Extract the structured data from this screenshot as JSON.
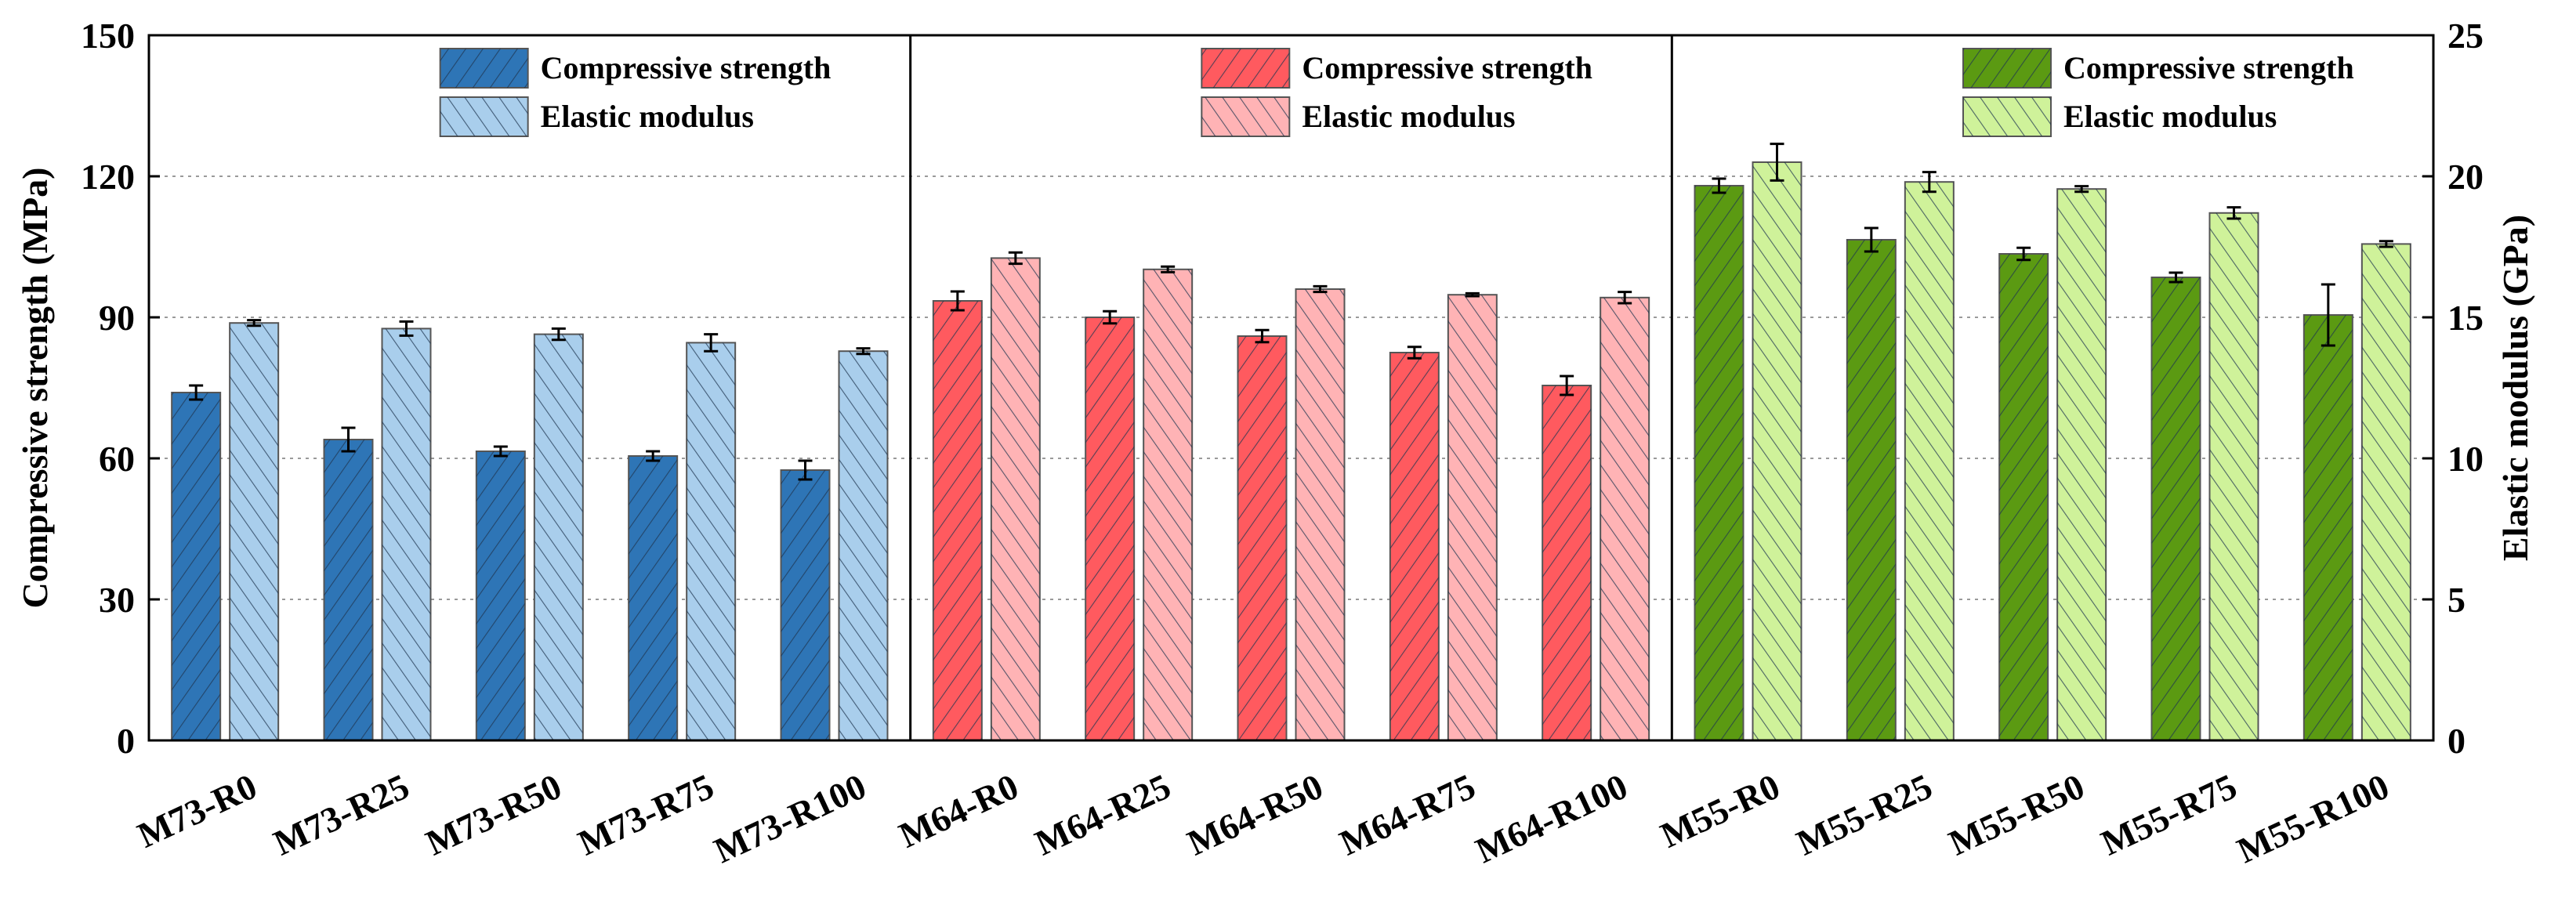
{
  "chart_data": {
    "type": "bar",
    "title": "",
    "ylabel_left": "Compressive strength (MPa)",
    "ylabel_right": "Elastic modulus (GPa)",
    "ylim_left": [
      0,
      150
    ],
    "ylim_right": [
      0,
      25
    ],
    "yticks_left": [
      "0",
      "30",
      "60",
      "90",
      "120",
      "150"
    ],
    "yticks_right": [
      "0",
      "5",
      "10",
      "15",
      "20",
      "25"
    ],
    "grid": true,
    "legend_position": "top-right of each panel",
    "legend_labels": {
      "compressive": "Compressive strength",
      "elastic": "Elastic modulus"
    },
    "panels": [
      {
        "group": "M73",
        "colors": {
          "compressive": "#2E75B6",
          "elastic": "#A9CEEC"
        },
        "categories": [
          "M73-R0",
          "M73-R25",
          "M73-R50",
          "M73-R75",
          "M73-R100"
        ],
        "series": [
          {
            "name": "Compressive strength",
            "axis": "left",
            "values": [
              74,
              64,
              61.5,
              60.5,
              57.5
            ],
            "errors": [
              1.5,
              2.5,
              1,
              1,
              2
            ]
          },
          {
            "name": "Elastic modulus",
            "axis": "right",
            "values": [
              14.8,
              14.6,
              14.4,
              14.1,
              13.8
            ],
            "errors": [
              0.1,
              0.25,
              0.2,
              0.3,
              0.1
            ]
          }
        ]
      },
      {
        "group": "M64",
        "colors": {
          "compressive": "#FF5A5F",
          "elastic": "#FFB3B5"
        },
        "categories": [
          "M64-R0",
          "M64-R25",
          "M64-R50",
          "M64-R75",
          "M64-R100"
        ],
        "series": [
          {
            "name": "Compressive strength",
            "axis": "left",
            "values": [
              93.5,
              90,
              86,
              82.5,
              75.5
            ],
            "errors": [
              2,
              1.3,
              1.3,
              1.2,
              2
            ]
          },
          {
            "name": "Elastic modulus",
            "axis": "right",
            "values": [
              17.1,
              16.7,
              16.0,
              15.8,
              15.7
            ],
            "errors": [
              0.2,
              0.1,
              0.1,
              0.05,
              0.2
            ]
          }
        ]
      },
      {
        "group": "M55",
        "colors": {
          "compressive": "#5B9A12",
          "elastic": "#CFF29A"
        },
        "categories": [
          "M55-R0",
          "M55-R25",
          "M55-R50",
          "M55-R75",
          "M55-R100"
        ],
        "series": [
          {
            "name": "Compressive strength",
            "axis": "left",
            "values": [
              118,
              106.5,
              103.5,
              98.5,
              90.5
            ],
            "errors": [
              1.5,
              2.5,
              1.3,
              1,
              6.5
            ]
          },
          {
            "name": "Elastic modulus",
            "axis": "right",
            "values": [
              20.5,
              19.8,
              19.55,
              18.7,
              17.6
            ],
            "errors": [
              0.65,
              0.35,
              0.1,
              0.2,
              0.1
            ]
          }
        ]
      }
    ]
  }
}
